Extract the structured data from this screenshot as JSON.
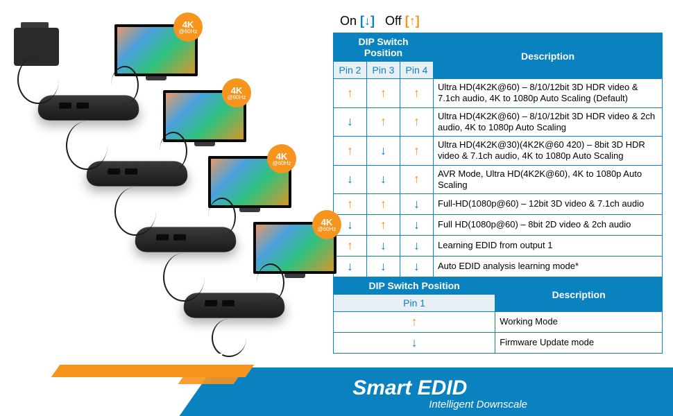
{
  "legend": {
    "on": "On",
    "off": "Off"
  },
  "badge": {
    "main": "4K",
    "hz": "@60Hz"
  },
  "table1": {
    "header_pos": "DIP Switch Position",
    "header_desc": "Description",
    "cols": [
      "Pin 2",
      "Pin 3",
      "Pin 4"
    ],
    "rows": [
      {
        "p": [
          "up",
          "up",
          "up"
        ],
        "d": "Ultra HD(4K2K@60) – 8/10/12bit 3D HDR video & 7.1ch audio, 4K to 1080p Auto Scaling (Default)"
      },
      {
        "p": [
          "dn",
          "up",
          "up"
        ],
        "d": "Ultra HD(4K2K@60) – 8/10/12bit 3D HDR video & 2ch audio, 4K to 1080p Auto Scaling"
      },
      {
        "p": [
          "up",
          "dn",
          "up"
        ],
        "d": "Ultra HD(4K2K@30)(4K2K@60 420) – 8bit 3D HDR video & 7.1ch audio, 4K to 1080p Auto Scaling"
      },
      {
        "p": [
          "dn",
          "dn",
          "up"
        ],
        "d": "AVR Mode, Ultra HD(4K2K@60), 4K to 1080p Auto Scaling"
      },
      {
        "p": [
          "up",
          "up",
          "dn"
        ],
        "d": "Full-HD(1080p@60) – 12bit 3D video & 7.1ch audio"
      },
      {
        "p": [
          "dn",
          "up",
          "dn"
        ],
        "d": "Full HD(1080p@60) – 8bit 2D video & 2ch audio"
      },
      {
        "p": [
          "up",
          "dn",
          "dn"
        ],
        "d": "Learning EDID from output 1"
      },
      {
        "p": [
          "dn",
          "dn",
          "dn"
        ],
        "d": "Auto EDID analysis learning mode*"
      }
    ]
  },
  "table2": {
    "header_pos": "DIP Switch Position",
    "header_desc": "Description",
    "col": "Pin 1",
    "rows": [
      {
        "p": "up",
        "d": "Working Mode"
      },
      {
        "p": "dn",
        "d": "Firmware Update mode"
      }
    ]
  },
  "banner": {
    "title": "Smart EDID",
    "subtitle": "Intelligent Downscale"
  },
  "colors": {
    "blue": "#0b82c0",
    "orange": "#f7941e",
    "subhdr_bg": "#e7eff5"
  }
}
